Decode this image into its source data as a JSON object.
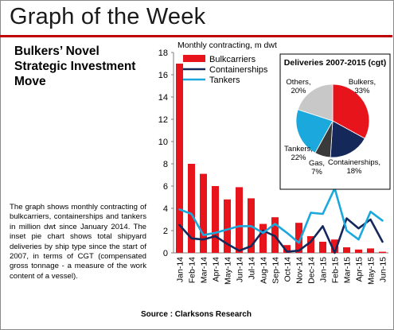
{
  "header": {
    "title": "Graph of the Week",
    "subtitle": "Bulkers’ Novel Strategic Investment Move",
    "body": "The graph shows monthly contracting of bulkcarriers, containerships and tankers in million dwt since January 2014. The inset pie chart shows total shipyard deliveries by ship type since the start of 2007, in terms of CGT (compensated gross tonnage - a measure of the work content of a vessel).",
    "source": "Source : Clarksons Research"
  },
  "chart_data": [
    {
      "type": "bar",
      "title": "",
      "ylabel": "Monthly contracting, m dwt",
      "xlabel": "",
      "ylim": [
        0,
        18
      ],
      "yticks": [
        0,
        2,
        4,
        6,
        8,
        10,
        12,
        14,
        16,
        18
      ],
      "grid": false,
      "legend": "top-left",
      "categories": [
        "Jan-14",
        "Feb-14",
        "Mar-14",
        "Apr-14",
        "May-14",
        "Jun-14",
        "Jul-14",
        "Aug-14",
        "Sep-14",
        "Oct-14",
        "Nov-14",
        "Dec-14",
        "Jan-15",
        "Feb-15",
        "Mar-15",
        "Apr-15",
        "May-15",
        "Jun-15"
      ],
      "series": [
        {
          "name": "Bulkcarriers",
          "kind": "bar",
          "color": "#e8141b",
          "values": [
            17.0,
            8.0,
            7.1,
            6.0,
            4.8,
            5.9,
            4.9,
            2.6,
            3.2,
            0.7,
            2.7,
            1.5,
            1.0,
            1.2,
            0.5,
            0.3,
            0.4,
            0.1
          ]
        },
        {
          "name": "Containerships",
          "kind": "line",
          "color": "#14285a",
          "values": [
            2.5,
            1.3,
            1.2,
            1.5,
            0.8,
            0.2,
            0.6,
            2.0,
            1.5,
            0.1,
            0.2,
            1.0,
            2.4,
            0.0,
            3.1,
            2.2,
            3.0,
            1.0
          ]
        },
        {
          "name": "Tankers",
          "kind": "line",
          "color": "#1ba8dc",
          "values": [
            3.9,
            3.5,
            1.6,
            1.8,
            2.1,
            2.4,
            2.4,
            1.8,
            2.6,
            1.8,
            0.9,
            3.6,
            3.5,
            5.8,
            2.0,
            1.2,
            3.7,
            2.9
          ]
        }
      ]
    },
    {
      "type": "pie",
      "title": "Deliveries 2007-2015 (cgt)",
      "slices": [
        {
          "label": "Bulkers",
          "value": 33,
          "display": "Bulkers,\n33%",
          "color": "#e8141b"
        },
        {
          "label": "Containerships",
          "value": 18,
          "display": "Containerships,\n18%",
          "color": "#14285a"
        },
        {
          "label": "Gas",
          "value": 7,
          "display": "Gas,\n7%",
          "color": "#3a3a3a"
        },
        {
          "label": "Tankers",
          "value": 22,
          "display": "Tankers,\n22%",
          "color": "#1ba8dc"
        },
        {
          "label": "Others",
          "value": 20,
          "display": "Others,\n20%",
          "color": "#c8c8c8"
        }
      ]
    }
  ]
}
